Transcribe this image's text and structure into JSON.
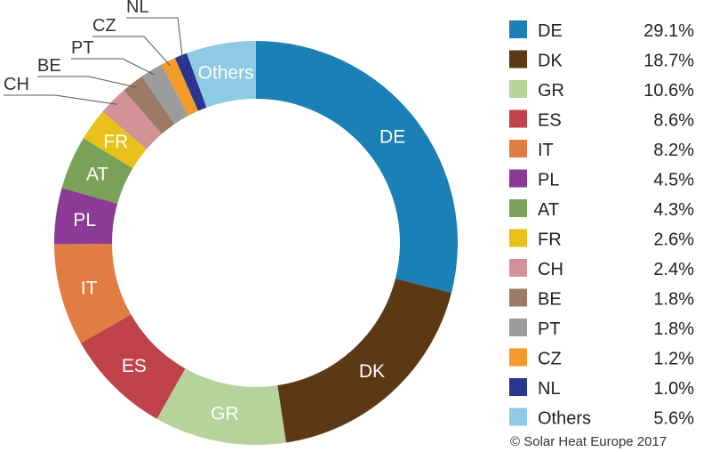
{
  "chart_data": {
    "type": "pie",
    "donut": true,
    "categories": [
      "DE",
      "DK",
      "GR",
      "ES",
      "IT",
      "PL",
      "AT",
      "FR",
      "CH",
      "BE",
      "PT",
      "CZ",
      "NL",
      "Others"
    ],
    "values": [
      29.1,
      18.7,
      10.6,
      8.6,
      8.2,
      4.5,
      4.3,
      2.6,
      2.4,
      1.8,
      1.8,
      1.2,
      1.0,
      5.6
    ],
    "value_labels": [
      "29.1%",
      "18.7%",
      "10.6%",
      "8.6%",
      "8.2%",
      "4.5%",
      "4.3%",
      "2.6%",
      "2.4%",
      "1.8%",
      "1.8%",
      "1.2%",
      "1.0%",
      "5.6%"
    ],
    "colors": [
      "#1a80b6",
      "#5c3915",
      "#b6d39b",
      "#c0424b",
      "#e27c45",
      "#8b3a96",
      "#7ba159",
      "#e8c21a",
      "#d39396",
      "#9b7b66",
      "#9c9c9c",
      "#f39a28",
      "#2a3491",
      "#8fcae4"
    ],
    "title": "",
    "legend_position": "right",
    "credit": "© Solar Heat Europe 2017"
  }
}
